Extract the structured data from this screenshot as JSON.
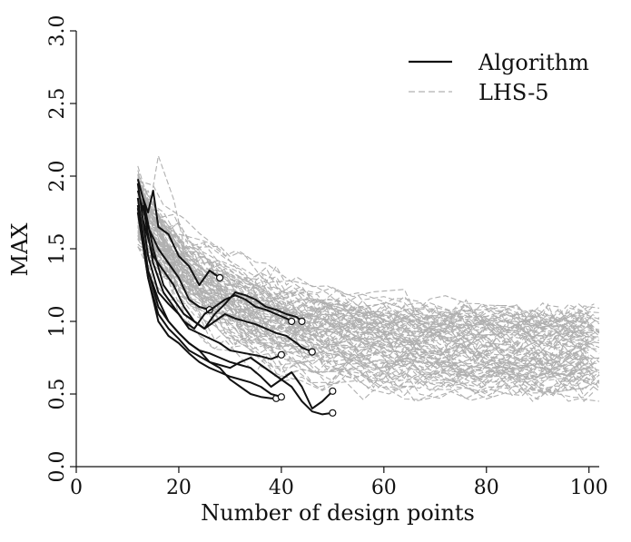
{
  "chart_data": {
    "type": "line",
    "title": "",
    "xlabel": "Number of design points",
    "ylabel": "MAX",
    "xlim": [
      0,
      102
    ],
    "ylim": [
      0,
      3
    ],
    "xticks": [
      "0",
      "20",
      "40",
      "60",
      "80",
      "100"
    ],
    "yticks": [
      "0.0",
      "0.5",
      "1.0",
      "1.5",
      "2.0",
      "2.5",
      "3.0"
    ],
    "grid": false,
    "legend_position": "top-right",
    "colors": {
      "algorithm": "#111111",
      "lhs": "#b0b0b0"
    },
    "series": [
      {
        "name": "Algorithm",
        "style": "solid",
        "runs": [
          {
            "x": [
              12,
              13,
              14,
              15,
              16,
              18,
              20,
              22,
              24,
              26,
              28
            ],
            "y": [
              1.98,
              1.85,
              1.75,
              1.9,
              1.65,
              1.6,
              1.45,
              1.38,
              1.25,
              1.35,
              1.3
            ]
          },
          {
            "x": [
              12,
              14,
              16,
              18,
              20,
              22,
              24,
              26
            ],
            "y": [
              1.9,
              1.65,
              1.5,
              1.4,
              1.3,
              1.15,
              1.1,
              1.08
            ]
          },
          {
            "x": [
              12,
              14,
              16,
              18,
              20,
              22,
              25,
              28,
              30,
              33,
              36,
              38,
              40
            ],
            "y": [
              1.95,
              1.45,
              1.2,
              1.12,
              1.05,
              0.95,
              0.9,
              0.85,
              0.8,
              0.78,
              0.76,
              0.74,
              0.77
            ]
          },
          {
            "x": [
              12,
              14,
              16,
              18,
              20,
              22,
              24,
              26,
              28,
              30,
              32,
              34,
              36,
              38,
              39
            ],
            "y": [
              1.8,
              1.35,
              1.1,
              1.0,
              0.92,
              0.85,
              0.8,
              0.72,
              0.68,
              0.6,
              0.55,
              0.5,
              0.48,
              0.47,
              0.47
            ]
          },
          {
            "x": [
              12,
              14,
              16,
              18,
              20,
              22,
              24,
              26,
              28,
              30,
              32,
              34,
              36,
              38,
              40
            ],
            "y": [
              1.75,
              1.3,
              1.0,
              0.9,
              0.85,
              0.78,
              0.72,
              0.68,
              0.65,
              0.62,
              0.6,
              0.58,
              0.55,
              0.5,
              0.48
            ]
          },
          {
            "x": [
              13,
              15,
              17,
              19,
              21,
              23,
              25,
              27,
              29,
              31,
              33,
              35,
              37,
              39,
              41,
              43,
              44,
              46
            ],
            "y": [
              1.85,
              1.5,
              1.25,
              1.15,
              1.05,
              1.0,
              0.95,
              1.0,
              1.05,
              1.02,
              1.0,
              0.98,
              0.95,
              0.92,
              0.9,
              0.85,
              0.82,
              0.79
            ]
          },
          {
            "x": [
              13,
              15,
              17,
              19,
              21,
              23,
              25,
              27,
              29,
              31,
              33,
              35,
              37,
              39,
              41,
              42
            ],
            "y": [
              1.8,
              1.4,
              1.2,
              1.1,
              1.0,
              0.95,
              1.05,
              1.1,
              1.15,
              1.18,
              1.15,
              1.1,
              1.08,
              1.05,
              1.02,
              1.0
            ]
          },
          {
            "x": [
              13,
              15,
              17,
              19,
              21,
              23,
              25,
              27,
              29,
              31,
              33,
              35,
              37,
              39,
              41,
              43,
              44
            ],
            "y": [
              1.7,
              1.45,
              1.35,
              1.25,
              1.1,
              1.0,
              0.95,
              1.05,
              1.12,
              1.2,
              1.18,
              1.15,
              1.1,
              1.08,
              1.05,
              1.03,
              1.0
            ]
          },
          {
            "x": [
              12,
              14,
              16,
              18,
              20,
              22,
              24,
              26,
              28,
              30,
              32,
              34,
              36,
              38,
              40,
              42,
              44,
              46,
              48,
              50
            ],
            "y": [
              1.85,
              1.35,
              1.15,
              1.0,
              0.92,
              0.85,
              0.8,
              0.78,
              0.75,
              0.72,
              0.7,
              0.68,
              0.62,
              0.55,
              0.6,
              0.65,
              0.55,
              0.4,
              0.45,
              0.52
            ]
          },
          {
            "x": [
              12,
              14,
              16,
              18,
              20,
              22,
              24,
              26,
              28,
              30,
              32,
              34,
              36,
              38,
              40,
              42,
              44,
              46,
              48,
              50
            ],
            "y": [
              1.78,
              1.3,
              1.05,
              0.95,
              0.88,
              0.8,
              0.76,
              0.72,
              0.7,
              0.68,
              0.72,
              0.75,
              0.7,
              0.65,
              0.6,
              0.55,
              0.45,
              0.38,
              0.36,
              0.37
            ]
          }
        ]
      },
      {
        "name": "LHS-5",
        "style": "dashed",
        "runs": "many"
      }
    ]
  }
}
